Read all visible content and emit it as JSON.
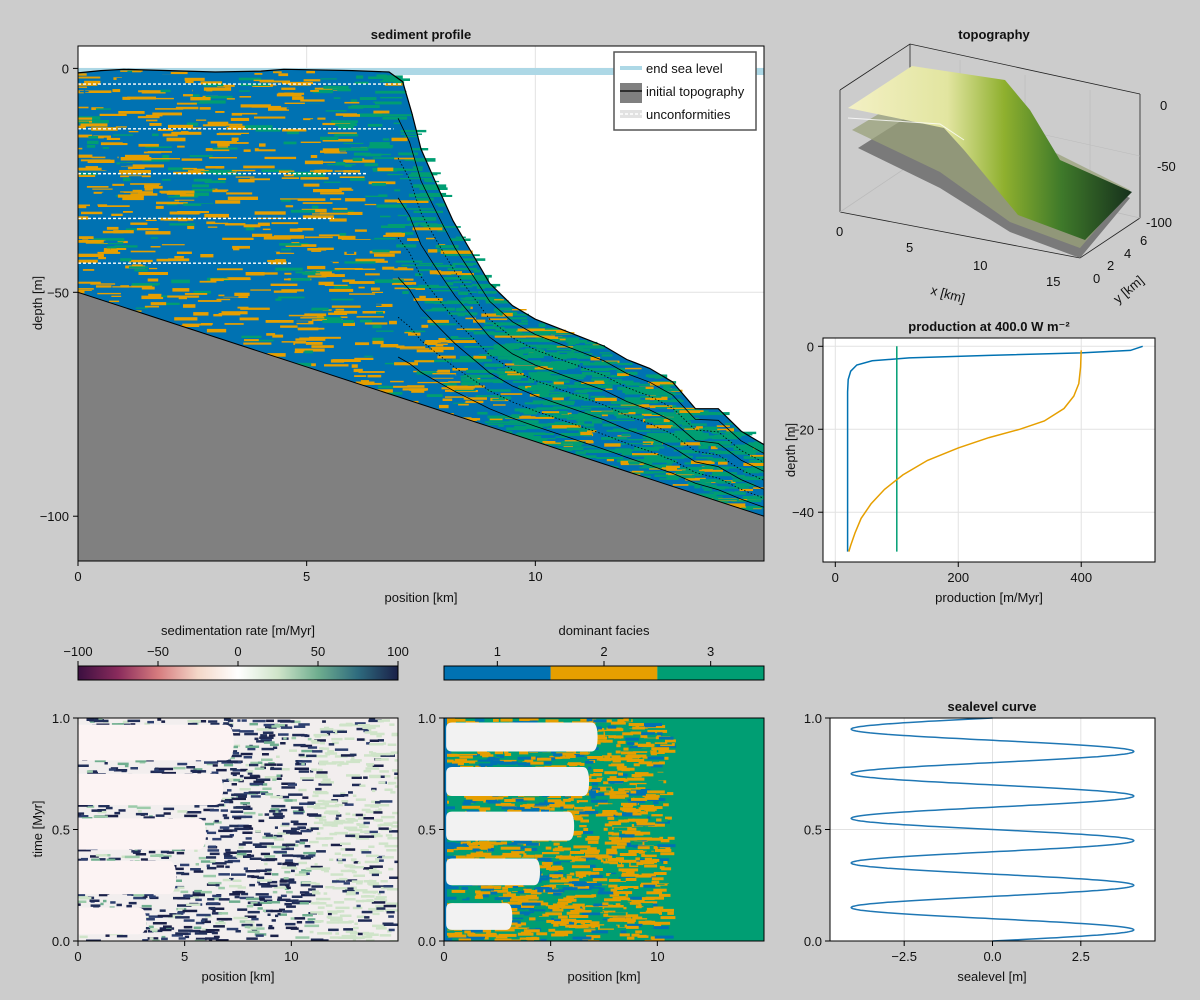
{
  "colors": {
    "figure_bg": "#cccccc",
    "facies_1": "#0072b2",
    "facies_2": "#e69f00",
    "facies_3": "#009e73",
    "basement": "#808080",
    "sea": "#add8e6",
    "sealevel_line": "#1f77b4"
  },
  "chart_data": [
    {
      "id": "sediment_profile",
      "type": "area",
      "title": "sediment profile",
      "xlabel": "position [km]",
      "ylabel": "depth [m]",
      "xlim": [
        0,
        15
      ],
      "ylim": [
        -110,
        5
      ],
      "xticks": [
        0,
        5,
        10
      ],
      "yticks": [
        0,
        -50,
        -100
      ],
      "grid": true,
      "legend": {
        "position": "top-right",
        "entries": [
          "end sea level",
          "initial topography",
          "unconformities"
        ]
      },
      "end_sea_level": 0,
      "surface": {
        "x": [
          0,
          0.5,
          1,
          2,
          3,
          4,
          4.5,
          5,
          6,
          6.8,
          7.1,
          7.3,
          7.5,
          7.8,
          8.2,
          8.6,
          9,
          9.5,
          10,
          10.5,
          11,
          11.5,
          12,
          12.5,
          13,
          13.5,
          14,
          14.5,
          15
        ],
        "depth": [
          -1,
          -0.5,
          -0.2,
          -0.5,
          -0.8,
          -0.6,
          -0.2,
          -0.3,
          -0.5,
          -0.8,
          -3,
          -10,
          -18,
          -25,
          -34,
          -41,
          -48,
          -53,
          -56,
          -58,
          -60,
          -62,
          -65,
          -67,
          -70,
          -76,
          -76,
          -81,
          -84
        ]
      },
      "initial_topography": {
        "x": [
          0,
          15
        ],
        "depth": [
          -50,
          -100
        ]
      },
      "unconformity_depths": [
        -3.5,
        -13.5,
        -23.5,
        -33.5,
        -43.5
      ],
      "unconformity_end_x": [
        7.1,
        6.9,
        6.3,
        5.6,
        4.7
      ]
    },
    {
      "id": "topography",
      "type": "surface3d",
      "title": "topography",
      "xlabel": "x [km]",
      "ylabel": "y [km]",
      "zticks": [
        0,
        -50,
        -100
      ],
      "xticks": [
        0,
        5,
        10,
        15
      ],
      "yticks": [
        0,
        2,
        4,
        6
      ]
    },
    {
      "id": "production",
      "type": "line",
      "title": "production at 400.0 W m⁻²",
      "xlabel": "production [m/Myr]",
      "ylabel": "depth [m]",
      "xlim": [
        -20,
        520
      ],
      "ylim": [
        -52,
        2
      ],
      "xticks": [
        0,
        200,
        400
      ],
      "yticks": [
        0,
        -20,
        -40
      ],
      "grid": true,
      "series": [
        {
          "color": "#0072b2",
          "points": [
            [
              500,
              0
            ],
            [
              480,
              -1
            ],
            [
              400,
              -1.6
            ],
            [
              250,
              -2.2
            ],
            [
              120,
              -2.8
            ],
            [
              60,
              -3.5
            ],
            [
              35,
              -4.5
            ],
            [
              25,
              -6
            ],
            [
              21,
              -8
            ],
            [
              20,
              -11
            ],
            [
              20,
              -20
            ],
            [
              20,
              -49.5
            ]
          ]
        },
        {
          "color": "#009e73",
          "points": [
            [
              100,
              0
            ],
            [
              100,
              -49.5
            ]
          ]
        },
        {
          "color": "#e69f00",
          "points": [
            [
              400,
              -1
            ],
            [
              399,
              -5
            ],
            [
              396,
              -9
            ],
            [
              388,
              -12
            ],
            [
              372,
              -15
            ],
            [
              340,
              -18
            ],
            [
              300,
              -20
            ],
            [
              250,
              -22
            ],
            [
              200,
              -24.5
            ],
            [
              150,
              -27.5
            ],
            [
              110,
              -31
            ],
            [
              80,
              -34.5
            ],
            [
              58,
              -38
            ],
            [
              42,
              -41.5
            ],
            [
              32,
              -45
            ],
            [
              25,
              -48
            ],
            [
              22,
              -49.5
            ]
          ]
        }
      ]
    },
    {
      "id": "sedimentation_rate_colorbar",
      "type": "colorbar",
      "label": "sedimentation rate [m/Myr]",
      "range": [
        -100,
        100
      ],
      "ticks": [
        -100,
        -50,
        0,
        50,
        100
      ],
      "stops": [
        "#3b0f40",
        "#8a2b5c",
        "#d67b7e",
        "#f3d7c8",
        "#ffffff",
        "#cfe4c9",
        "#6fae8f",
        "#2e6b7e",
        "#1a2048"
      ]
    },
    {
      "id": "facies_colorbar",
      "type": "colorbar",
      "label": "dominant facies",
      "ticks": [
        1,
        2,
        3
      ],
      "categories": [
        {
          "value": 1,
          "color": "#0072b2"
        },
        {
          "value": 2,
          "color": "#e69f00"
        },
        {
          "value": 3,
          "color": "#009e73"
        }
      ]
    },
    {
      "id": "sedimentation_rate_map",
      "type": "heatmap",
      "xlabel": "position [km]",
      "ylabel": "time [Myr]",
      "xlim": [
        0,
        15
      ],
      "ylim": [
        0,
        1
      ],
      "xticks": [
        0,
        5,
        10
      ],
      "yticks": [
        0,
        0.5,
        1
      ],
      "exposure_gaps": [
        {
          "t0": 0.03,
          "t1": 0.15,
          "x_max": 3.2
        },
        {
          "t0": 0.21,
          "t1": 0.36,
          "x_max": 4.6
        },
        {
          "t0": 0.41,
          "t1": 0.55,
          "x_max": 6.0
        },
        {
          "t0": 0.61,
          "t1": 0.75,
          "x_max": 6.8
        },
        {
          "t0": 0.81,
          "t1": 0.97,
          "x_max": 7.3
        }
      ]
    },
    {
      "id": "dominant_facies_map",
      "type": "heatmap",
      "xlabel": "position [km]",
      "xlim": [
        0,
        15
      ],
      "ylim": [
        0,
        1
      ],
      "xticks": [
        0,
        5,
        10
      ],
      "yticks": [
        0,
        0.5,
        1
      ],
      "exposure_gaps": [
        {
          "t0": 0.05,
          "t1": 0.17,
          "x_max": 3.2
        },
        {
          "t0": 0.25,
          "t1": 0.37,
          "x_max": 4.5
        },
        {
          "t0": 0.45,
          "t1": 0.58,
          "x_max": 6.1
        },
        {
          "t0": 0.65,
          "t1": 0.78,
          "x_max": 6.8
        },
        {
          "t0": 0.85,
          "t1": 0.98,
          "x_max": 7.2
        }
      ]
    },
    {
      "id": "sealevel_curve",
      "type": "line",
      "title": "sealevel curve",
      "xlabel": "sealevel [m]",
      "xlim": [
        -4.6,
        4.6
      ],
      "ylim": [
        0,
        1
      ],
      "xticks": [
        -2.5,
        0,
        2.5
      ],
      "xtick_labels": [
        "−2.5",
        "0.0",
        "2.5"
      ],
      "yticks": [
        0,
        0.5,
        1
      ],
      "grid": true,
      "amplitude": 4,
      "period_myr": 0.2
    }
  ]
}
